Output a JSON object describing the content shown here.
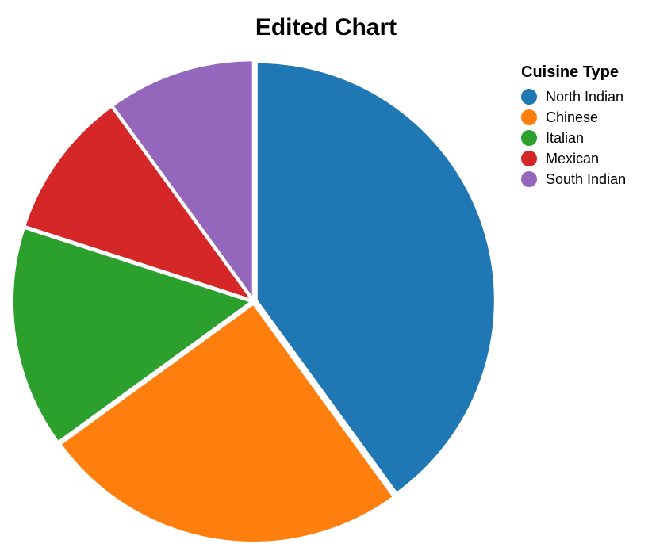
{
  "chart_data": {
    "type": "pie",
    "title": "Edited Chart",
    "legend_title": "Cuisine Type",
    "legend_position": "right",
    "categories": [
      "North Indian",
      "Chinese",
      "Italian",
      "Mexican",
      "South Indian"
    ],
    "values": [
      40,
      25,
      15,
      10,
      10
    ],
    "colors": [
      "#1f77b4",
      "#ff7f0e",
      "#2ca02c",
      "#d62728",
      "#9467bd"
    ]
  }
}
